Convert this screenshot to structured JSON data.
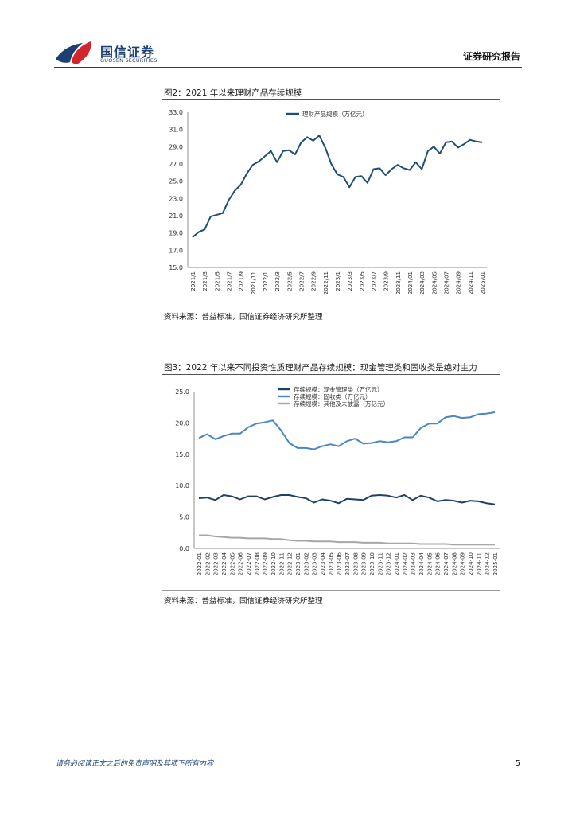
{
  "header": {
    "logo_cn": "国信证券",
    "logo_en": "GUOSEN SECURITIES",
    "report_type": "证券研究报告",
    "brand_colors": {
      "navy": "#1e3f73",
      "red": "#d2252c"
    }
  },
  "figure2": {
    "title": "图2：2021 年以来理财产品存续规模",
    "source": "资料来源：普益标准，国信证券经济研究所整理",
    "chart_data": {
      "type": "line",
      "legend_position": "top-center",
      "grid": false,
      "ylim": [
        15,
        33
      ],
      "yticks": [
        "15.0",
        "17.0",
        "19.0",
        "21.0",
        "23.0",
        "25.0",
        "27.0",
        "29.0",
        "31.0",
        "33.0"
      ],
      "tick_labels": [
        "2021/1",
        "2021/3",
        "2021/5",
        "2021/7",
        "2021/9",
        "2021/11",
        "2022/1",
        "2022/3",
        "2022/5",
        "2022/7",
        "2022/9",
        "2022/11",
        "2023/1",
        "2023/3",
        "2023/5",
        "2023/7",
        "2023/9",
        "2023/11",
        "2024/01",
        "2024/03",
        "2024/05",
        "2024/07",
        "2024/09",
        "2024/11",
        "2025/01"
      ],
      "series": [
        {
          "name": "理财产品规模（万亿元）",
          "color": "#1f4e79",
          "values": [
            18.5,
            19.1,
            19.4,
            20.9,
            21.1,
            21.3,
            22.8,
            23.9,
            24.6,
            25.9,
            26.9,
            27.3,
            27.9,
            28.5,
            27.2,
            28.5,
            28.6,
            28.1,
            29.5,
            30.1,
            29.7,
            30.3,
            28.9,
            27.0,
            25.8,
            25.5,
            24.3,
            25.5,
            25.6,
            24.8,
            26.4,
            26.5,
            25.7,
            26.4,
            26.9,
            26.5,
            26.3,
            27.2,
            26.4,
            28.5,
            29.0,
            28.2,
            29.5,
            29.6,
            28.9,
            29.3,
            29.8,
            29.6,
            29.5
          ]
        }
      ]
    }
  },
  "figure3": {
    "title": "图3：2022 年以来不同投资性质理财产品存续规模：现金管理类和固收类是绝对主力",
    "source": "资料来源：普益标准，国信证券经济研究所整理",
    "chart_data": {
      "type": "line",
      "legend_position": "top-center",
      "grid": false,
      "ylim": [
        0,
        25
      ],
      "yticks": [
        "0.0",
        "5.0",
        "10.0",
        "15.0",
        "20.0",
        "25.0"
      ],
      "categories": [
        "2022-01",
        "2022-02",
        "2022-03",
        "2022-04",
        "2022-05",
        "2022-06",
        "2022-07",
        "2022-08",
        "2022-09",
        "2022-10",
        "2022-11",
        "2022-12",
        "2023-01",
        "2023-02",
        "2023-03",
        "2023-04",
        "2023-05",
        "2023-06",
        "2023-07",
        "2023-08",
        "2023-09",
        "2023-10",
        "2023-11",
        "2023-12",
        "2024-01",
        "2024-02",
        "2024-03",
        "2024-04",
        "2024-05",
        "2024-06",
        "2024-07",
        "2024-08",
        "2024-09",
        "2024-10",
        "2024-11",
        "2024-12",
        "2025-01"
      ],
      "series": [
        {
          "name": "存续规模：现金管理类（万亿元）",
          "color": "#1f3f6e",
          "values": [
            8.0,
            8.1,
            7.7,
            8.5,
            8.3,
            7.8,
            8.3,
            8.3,
            7.8,
            8.2,
            8.5,
            8.5,
            8.2,
            8.0,
            7.3,
            7.8,
            7.6,
            7.2,
            7.9,
            7.8,
            7.7,
            8.4,
            8.5,
            8.4,
            8.1,
            8.5,
            7.7,
            8.4,
            8.1,
            7.5,
            7.7,
            7.6,
            7.3,
            7.6,
            7.5,
            7.2,
            7.0
          ]
        },
        {
          "name": "存续规模：固收类（万亿元）",
          "color": "#4a86c5",
          "values": [
            17.6,
            18.2,
            17.4,
            17.9,
            18.3,
            18.3,
            19.3,
            19.9,
            20.1,
            20.4,
            18.8,
            16.8,
            16.0,
            16.0,
            15.8,
            16.3,
            16.6,
            16.3,
            17.1,
            17.5,
            16.7,
            16.8,
            17.1,
            16.9,
            17.1,
            17.7,
            17.7,
            19.2,
            19.9,
            19.9,
            20.9,
            21.1,
            20.8,
            20.9,
            21.4,
            21.5,
            21.7
          ]
        },
        {
          "name": "存续规模：其他及未披露（万亿元）",
          "color": "#a6a6a6",
          "values": [
            2.1,
            2.1,
            1.9,
            1.8,
            1.7,
            1.7,
            1.6,
            1.6,
            1.6,
            1.5,
            1.5,
            1.3,
            1.2,
            1.2,
            1.1,
            1.1,
            1.1,
            1.0,
            1.0,
            1.0,
            0.9,
            0.9,
            0.9,
            0.8,
            0.8,
            0.8,
            0.8,
            0.7,
            0.7,
            0.7,
            0.7,
            0.6,
            0.6,
            0.6,
            0.6,
            0.6,
            0.6
          ]
        }
      ]
    }
  },
  "footer": {
    "disclaimer": "请务必阅读正文之后的免责声明及其项下所有内容",
    "page_number": "5"
  }
}
